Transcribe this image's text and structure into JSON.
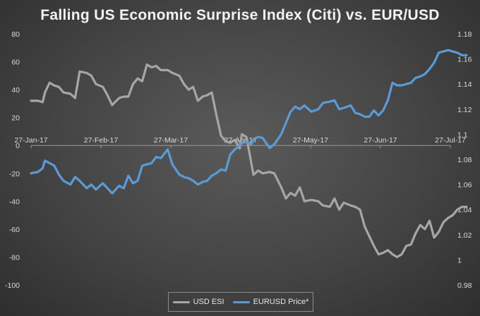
{
  "chart_data": {
    "type": "line",
    "title": "Falling US Economic Surprise Index (Citi) vs. EUR/USD",
    "x_tick_labels": [
      "27-Jan-17",
      "27-Feb-17",
      "27-Mar-17",
      "27-Apr-17",
      "27-May-17",
      "27-Jun-17",
      "27-Jul-17"
    ],
    "x_range": [
      "2017-01-27",
      "2017-07-27"
    ],
    "y_left": {
      "range": [
        -100,
        80
      ],
      "ticks": [
        80,
        60,
        40,
        20,
        0,
        -20,
        -40,
        -60,
        -80,
        -100
      ]
    },
    "y_right": {
      "range": [
        0.98,
        1.18
      ],
      "ticks": [
        "1.18",
        "1.16",
        "1.14",
        "1.12",
        "1.1",
        "1.08",
        "1.06",
        "1.04",
        "1.02",
        "1",
        "0.98"
      ]
    },
    "grid": false,
    "legend_position": "bottom",
    "series": [
      {
        "name": "USD ESI",
        "axis": "left",
        "color": "#a6a6a6",
        "points": [
          [
            "2017-01-27",
            32
          ],
          [
            "2017-01-30",
            32
          ],
          [
            "2017-02-01",
            31
          ],
          [
            "2017-02-02",
            38
          ],
          [
            "2017-02-04",
            45
          ],
          [
            "2017-02-06",
            43
          ],
          [
            "2017-02-08",
            42
          ],
          [
            "2017-02-10",
            38
          ],
          [
            "2017-02-13",
            37
          ],
          [
            "2017-02-15",
            34
          ],
          [
            "2017-02-17",
            53
          ],
          [
            "2017-02-20",
            52
          ],
          [
            "2017-02-22",
            50
          ],
          [
            "2017-02-24",
            44
          ],
          [
            "2017-02-27",
            42
          ],
          [
            "2017-03-01",
            36
          ],
          [
            "2017-03-03",
            29
          ],
          [
            "2017-03-06",
            34
          ],
          [
            "2017-03-08",
            35
          ],
          [
            "2017-03-10",
            35
          ],
          [
            "2017-03-12",
            44
          ],
          [
            "2017-03-14",
            48
          ],
          [
            "2017-03-16",
            46
          ],
          [
            "2017-03-18",
            58
          ],
          [
            "2017-03-20",
            56
          ],
          [
            "2017-03-22",
            57
          ],
          [
            "2017-03-24",
            54
          ],
          [
            "2017-03-27",
            54
          ],
          [
            "2017-03-29",
            52
          ],
          [
            "2017-04-01",
            50
          ],
          [
            "2017-04-03",
            44
          ],
          [
            "2017-04-05",
            40
          ],
          [
            "2017-04-07",
            42
          ],
          [
            "2017-04-09",
            32
          ],
          [
            "2017-04-11",
            35
          ],
          [
            "2017-04-13",
            36
          ],
          [
            "2017-04-15",
            38
          ],
          [
            "2017-04-17",
            22
          ],
          [
            "2017-04-19",
            7
          ],
          [
            "2017-04-21",
            3
          ],
          [
            "2017-04-23",
            2
          ],
          [
            "2017-04-25",
            4
          ],
          [
            "2017-04-27",
            -2
          ],
          [
            "2017-04-28",
            8
          ],
          [
            "2017-04-30",
            6
          ],
          [
            "2017-05-02",
            -12
          ],
          [
            "2017-05-03",
            -21
          ],
          [
            "2017-05-05",
            -18
          ],
          [
            "2017-05-07",
            -20
          ],
          [
            "2017-05-10",
            -19
          ],
          [
            "2017-05-12",
            -20
          ],
          [
            "2017-05-15",
            -30
          ],
          [
            "2017-05-17",
            -38
          ],
          [
            "2017-05-19",
            -34
          ],
          [
            "2017-05-21",
            -36
          ],
          [
            "2017-05-23",
            -30
          ],
          [
            "2017-05-25",
            -40
          ],
          [
            "2017-05-28",
            -39
          ],
          [
            "2017-05-31",
            -40
          ],
          [
            "2017-06-02",
            -43
          ],
          [
            "2017-06-05",
            -44
          ],
          [
            "2017-06-07",
            -38
          ],
          [
            "2017-06-09",
            -46
          ],
          [
            "2017-06-11",
            -41
          ],
          [
            "2017-06-14",
            -43
          ],
          [
            "2017-06-16",
            -44
          ],
          [
            "2017-06-18",
            -46
          ],
          [
            "2017-06-20",
            -58
          ],
          [
            "2017-06-22",
            -65
          ],
          [
            "2017-06-24",
            -72
          ],
          [
            "2017-06-26",
            -78
          ],
          [
            "2017-06-28",
            -77
          ],
          [
            "2017-06-30",
            -75
          ],
          [
            "2017-07-02",
            -78
          ],
          [
            "2017-07-04",
            -80
          ],
          [
            "2017-07-06",
            -78
          ],
          [
            "2017-07-08",
            -72
          ],
          [
            "2017-07-10",
            -71
          ],
          [
            "2017-07-12",
            -63
          ],
          [
            "2017-07-14",
            -57
          ],
          [
            "2017-07-16",
            -60
          ],
          [
            "2017-07-18",
            -54
          ],
          [
            "2017-07-20",
            -66
          ],
          [
            "2017-07-22",
            -62
          ],
          [
            "2017-07-24",
            -55
          ],
          [
            "2017-07-26",
            -52
          ],
          [
            "2017-07-28",
            -50
          ],
          [
            "2017-07-30",
            -46
          ],
          [
            "2017-08-01",
            -44
          ],
          [
            "2017-08-03",
            -44
          ]
        ]
      },
      {
        "name": "EURUSD Price*",
        "axis": "right",
        "color": "#5b9bd5",
        "points": [
          [
            "2017-01-27",
            1.069
          ],
          [
            "2017-01-30",
            1.07
          ],
          [
            "2017-02-01",
            1.073
          ],
          [
            "2017-02-02",
            1.079
          ],
          [
            "2017-02-04",
            1.077
          ],
          [
            "2017-02-06",
            1.075
          ],
          [
            "2017-02-08",
            1.068
          ],
          [
            "2017-02-10",
            1.063
          ],
          [
            "2017-02-13",
            1.06
          ],
          [
            "2017-02-15",
            1.066
          ],
          [
            "2017-02-17",
            1.063
          ],
          [
            "2017-02-20",
            1.057
          ],
          [
            "2017-02-22",
            1.06
          ],
          [
            "2017-02-24",
            1.056
          ],
          [
            "2017-02-27",
            1.061
          ],
          [
            "2017-03-01",
            1.057
          ],
          [
            "2017-03-03",
            1.053
          ],
          [
            "2017-03-06",
            1.059
          ],
          [
            "2017-03-08",
            1.057
          ],
          [
            "2017-03-10",
            1.067
          ],
          [
            "2017-03-12",
            1.061
          ],
          [
            "2017-03-14",
            1.063
          ],
          [
            "2017-03-16",
            1.075
          ],
          [
            "2017-03-18",
            1.076
          ],
          [
            "2017-03-20",
            1.077
          ],
          [
            "2017-03-22",
            1.082
          ],
          [
            "2017-03-24",
            1.081
          ],
          [
            "2017-03-27",
            1.088
          ],
          [
            "2017-03-29",
            1.076
          ],
          [
            "2017-04-01",
            1.068
          ],
          [
            "2017-04-03",
            1.066
          ],
          [
            "2017-04-05",
            1.065
          ],
          [
            "2017-04-07",
            1.063
          ],
          [
            "2017-04-09",
            1.06
          ],
          [
            "2017-04-11",
            1.062
          ],
          [
            "2017-04-13",
            1.063
          ],
          [
            "2017-04-15",
            1.067
          ],
          [
            "2017-04-17",
            1.069
          ],
          [
            "2017-04-19",
            1.072
          ],
          [
            "2017-04-21",
            1.071
          ],
          [
            "2017-04-23",
            1.084
          ],
          [
            "2017-04-25",
            1.088
          ],
          [
            "2017-04-27",
            1.091
          ],
          [
            "2017-04-28",
            1.093
          ],
          [
            "2017-04-30",
            1.094
          ],
          [
            "2017-05-02",
            1.092
          ],
          [
            "2017-05-03",
            1.096
          ],
          [
            "2017-05-05",
            1.098
          ],
          [
            "2017-05-07",
            1.097
          ],
          [
            "2017-05-10",
            1.089
          ],
          [
            "2017-05-12",
            1.092
          ],
          [
            "2017-05-15",
            1.1
          ],
          [
            "2017-05-17",
            1.109
          ],
          [
            "2017-05-19",
            1.118
          ],
          [
            "2017-05-21",
            1.122
          ],
          [
            "2017-05-23",
            1.12
          ],
          [
            "2017-05-25",
            1.123
          ],
          [
            "2017-05-28",
            1.118
          ],
          [
            "2017-05-31",
            1.12
          ],
          [
            "2017-06-02",
            1.125
          ],
          [
            "2017-06-05",
            1.126
          ],
          [
            "2017-06-07",
            1.127
          ],
          [
            "2017-06-09",
            1.12
          ],
          [
            "2017-06-11",
            1.121
          ],
          [
            "2017-06-14",
            1.123
          ],
          [
            "2017-06-16",
            1.117
          ],
          [
            "2017-06-18",
            1.116
          ],
          [
            "2017-06-20",
            1.114
          ],
          [
            "2017-06-22",
            1.114
          ],
          [
            "2017-06-24",
            1.119
          ],
          [
            "2017-06-26",
            1.115
          ],
          [
            "2017-06-28",
            1.119
          ],
          [
            "2017-06-30",
            1.127
          ],
          [
            "2017-07-02",
            1.141
          ],
          [
            "2017-07-04",
            1.139
          ],
          [
            "2017-07-06",
            1.139
          ],
          [
            "2017-07-08",
            1.14
          ],
          [
            "2017-07-10",
            1.141
          ],
          [
            "2017-07-12",
            1.145
          ],
          [
            "2017-07-14",
            1.146
          ],
          [
            "2017-07-16",
            1.148
          ],
          [
            "2017-07-18",
            1.152
          ],
          [
            "2017-07-20",
            1.157
          ],
          [
            "2017-07-22",
            1.165
          ],
          [
            "2017-07-24",
            1.166
          ],
          [
            "2017-07-26",
            1.167
          ],
          [
            "2017-07-28",
            1.166
          ],
          [
            "2017-07-30",
            1.165
          ],
          [
            "2017-08-01",
            1.163
          ],
          [
            "2017-08-03",
            1.163
          ]
        ]
      }
    ]
  }
}
